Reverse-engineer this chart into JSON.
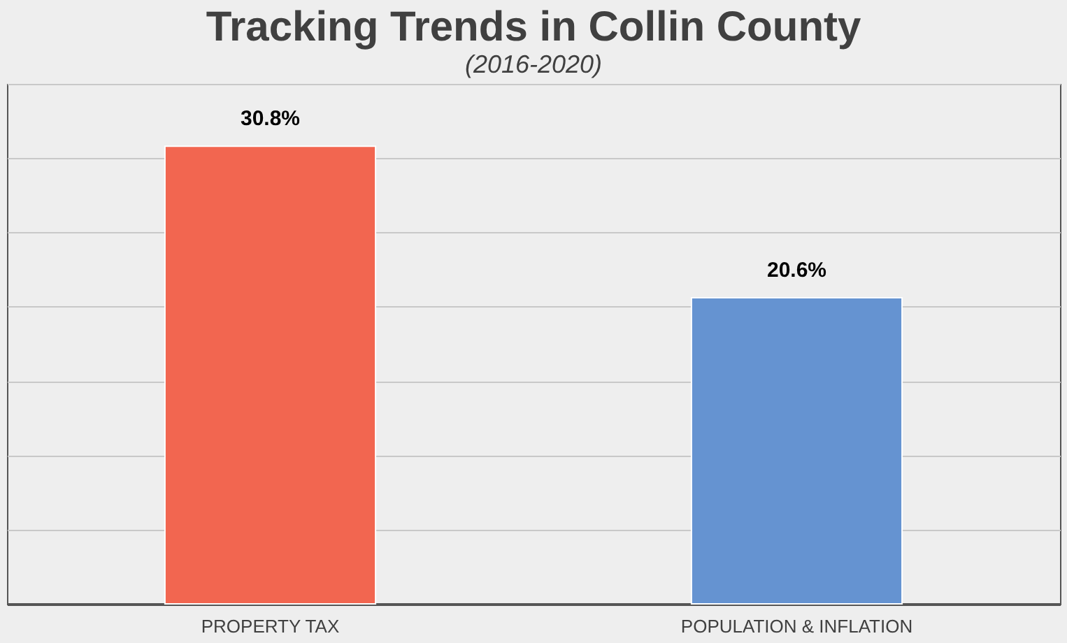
{
  "chart_data": {
    "type": "bar",
    "title": "Tracking Trends in Collin County",
    "subtitle": "(2016-2020)",
    "categories": [
      "PROPERTY TAX",
      "POPULATION & INFLATION"
    ],
    "values": [
      30.8,
      20.6
    ],
    "colors": [
      "#f26650",
      "#6593d1"
    ],
    "value_labels": [
      "30.8%",
      "20.6%"
    ],
    "ylim": [
      0,
      35
    ],
    "grid": "y",
    "tick_labels": "x"
  }
}
